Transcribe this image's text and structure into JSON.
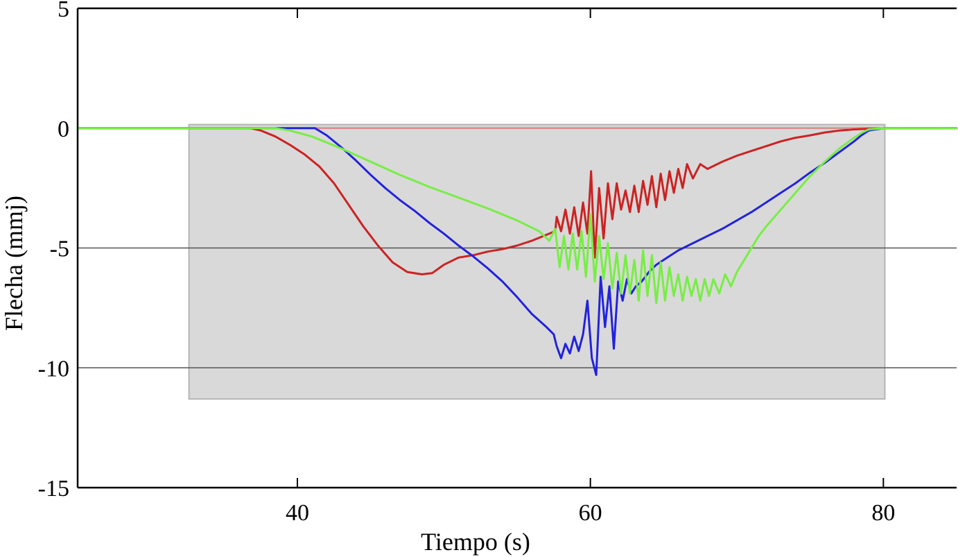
{
  "chart_data": {
    "type": "line",
    "title": "",
    "xlabel": "Tiempo (s)",
    "ylabel": "Flecha (mmj)",
    "xlim": [
      25,
      85
    ],
    "ylim": [
      -15,
      5
    ],
    "xticks": [
      40,
      60,
      80
    ],
    "xtick_labels": [
      "40",
      "60",
      "80"
    ],
    "yticks": [
      5,
      0,
      -5,
      -10,
      -15
    ],
    "ytick_labels": [
      "5",
      "0",
      "-5",
      "-10",
      "-15"
    ],
    "grid_y": [
      0,
      -5,
      -10
    ],
    "grid": "horizontal lines at 0, -5 and -10",
    "legend": "none",
    "shaded_region": {
      "x": [
        32.6,
        80.1
      ],
      "y": [
        -11.3,
        0.15
      ],
      "color": "#d9d9d9"
    },
    "series": [
      {
        "color": "#ff9999",
        "style": "background",
        "points": [
          [
            25,
            0
          ],
          [
            85,
            0
          ]
        ]
      },
      {
        "color": "#cc2222",
        "points": [
          [
            25,
            0
          ],
          [
            36.8,
            0
          ],
          [
            37.5,
            -0.1
          ],
          [
            38.5,
            -0.35
          ],
          [
            39.5,
            -0.7
          ],
          [
            40.5,
            -1.1
          ],
          [
            41.5,
            -1.6
          ],
          [
            42.5,
            -2.3
          ],
          [
            43.5,
            -3.2
          ],
          [
            44.5,
            -4.1
          ],
          [
            45.5,
            -4.9
          ],
          [
            46.5,
            -5.6
          ],
          [
            47.5,
            -6.0
          ],
          [
            48.5,
            -6.1
          ],
          [
            49.2,
            -6.05
          ],
          [
            50,
            -5.7
          ],
          [
            51,
            -5.4
          ],
          [
            52,
            -5.3
          ],
          [
            53,
            -5.15
          ],
          [
            54,
            -5.05
          ],
          [
            55,
            -4.9
          ],
          [
            56,
            -4.7
          ],
          [
            57,
            -4.45
          ],
          [
            57.6,
            -4.3
          ],
          [
            57.7,
            -3.7
          ],
          [
            58.0,
            -4.3
          ],
          [
            58.3,
            -3.4
          ],
          [
            58.6,
            -4.4
          ],
          [
            58.9,
            -3.3
          ],
          [
            59.2,
            -4.5
          ],
          [
            59.5,
            -3.1
          ],
          [
            59.8,
            -4.4
          ],
          [
            60.05,
            -1.8
          ],
          [
            60.3,
            -5.4
          ],
          [
            60.6,
            -2.5
          ],
          [
            60.9,
            -4.6
          ],
          [
            61.2,
            -2.3
          ],
          [
            61.5,
            -3.8
          ],
          [
            61.8,
            -2.3
          ],
          [
            62.1,
            -3.4
          ],
          [
            62.4,
            -2.6
          ],
          [
            62.7,
            -3.5
          ],
          [
            63.0,
            -2.4
          ],
          [
            63.3,
            -3.5
          ],
          [
            63.6,
            -2.2
          ],
          [
            63.9,
            -3.2
          ],
          [
            64.2,
            -2.0
          ],
          [
            64.5,
            -3.3
          ],
          [
            64.8,
            -1.9
          ],
          [
            65.1,
            -3.0
          ],
          [
            65.4,
            -1.8
          ],
          [
            65.7,
            -2.7
          ],
          [
            66.0,
            -1.7
          ],
          [
            66.3,
            -2.5
          ],
          [
            66.6,
            -1.5
          ],
          [
            67,
            -2.1
          ],
          [
            67.5,
            -1.5
          ],
          [
            68,
            -1.7
          ],
          [
            69,
            -1.4
          ],
          [
            70,
            -1.15
          ],
          [
            71,
            -0.95
          ],
          [
            72,
            -0.75
          ],
          [
            73,
            -0.55
          ],
          [
            74,
            -0.4
          ],
          [
            75,
            -0.3
          ],
          [
            76,
            -0.18
          ],
          [
            77,
            -0.1
          ],
          [
            78,
            -0.05
          ],
          [
            80,
            0
          ],
          [
            85,
            0
          ]
        ]
      },
      {
        "color": "#2222dd",
        "points": [
          [
            25,
            0
          ],
          [
            41.2,
            0
          ],
          [
            42,
            -0.3
          ],
          [
            43,
            -0.8
          ],
          [
            44,
            -1.35
          ],
          [
            45,
            -1.95
          ],
          [
            46,
            -2.5
          ],
          [
            47,
            -3.0
          ],
          [
            48,
            -3.45
          ],
          [
            49,
            -3.95
          ],
          [
            50,
            -4.4
          ],
          [
            51,
            -4.9
          ],
          [
            52,
            -5.35
          ],
          [
            53,
            -5.85
          ],
          [
            54,
            -6.4
          ],
          [
            55,
            -7.05
          ],
          [
            56,
            -7.75
          ],
          [
            57,
            -8.3
          ],
          [
            57.5,
            -8.6
          ],
          [
            57.7,
            -9.1
          ],
          [
            58.0,
            -9.6
          ],
          [
            58.3,
            -9.0
          ],
          [
            58.6,
            -9.4
          ],
          [
            58.9,
            -8.7
          ],
          [
            59.2,
            -9.3
          ],
          [
            59.5,
            -8.6
          ],
          [
            59.8,
            -7.2
          ],
          [
            60.1,
            -9.6
          ],
          [
            60.4,
            -10.3
          ],
          [
            60.7,
            -6.2
          ],
          [
            61.0,
            -8.3
          ],
          [
            61.3,
            -6.6
          ],
          [
            61.6,
            -9.2
          ],
          [
            61.9,
            -6.4
          ],
          [
            62.2,
            -7.2
          ],
          [
            62.5,
            -6.3
          ],
          [
            62.8,
            -6.9
          ],
          [
            63.1,
            -6.6
          ],
          [
            63.5,
            -6.4
          ],
          [
            64.0,
            -6.0
          ],
          [
            64.5,
            -5.7
          ],
          [
            65,
            -5.5
          ],
          [
            66,
            -5.1
          ],
          [
            67,
            -4.8
          ],
          [
            68,
            -4.5
          ],
          [
            69,
            -4.2
          ],
          [
            70,
            -3.85
          ],
          [
            71,
            -3.5
          ],
          [
            72,
            -3.1
          ],
          [
            73,
            -2.7
          ],
          [
            74,
            -2.3
          ],
          [
            75,
            -1.85
          ],
          [
            76,
            -1.45
          ],
          [
            77,
            -1.0
          ],
          [
            78,
            -0.55
          ],
          [
            78.5,
            -0.3
          ],
          [
            79,
            -0.1
          ],
          [
            80,
            0
          ],
          [
            85,
            0
          ]
        ]
      },
      {
        "color": "#77ee44",
        "points": [
          [
            25,
            0
          ],
          [
            38.5,
            0
          ],
          [
            39.5,
            -0.1
          ],
          [
            41,
            -0.35
          ],
          [
            43,
            -0.85
          ],
          [
            45,
            -1.4
          ],
          [
            47,
            -1.95
          ],
          [
            49,
            -2.45
          ],
          [
            51,
            -2.9
          ],
          [
            53,
            -3.35
          ],
          [
            55,
            -3.85
          ],
          [
            56.5,
            -4.3
          ],
          [
            57.2,
            -4.7
          ],
          [
            57.6,
            -4.2
          ],
          [
            57.9,
            -5.8
          ],
          [
            58.2,
            -4.5
          ],
          [
            58.5,
            -5.9
          ],
          [
            58.8,
            -4.4
          ],
          [
            59.1,
            -5.9
          ],
          [
            59.4,
            -4.3
          ],
          [
            59.7,
            -6.2
          ],
          [
            60.0,
            -3.6
          ],
          [
            60.3,
            -6.4
          ],
          [
            60.6,
            -4.5
          ],
          [
            60.9,
            -6.3
          ],
          [
            61.2,
            -4.8
          ],
          [
            61.5,
            -6.7
          ],
          [
            61.8,
            -5.2
          ],
          [
            62.1,
            -6.9
          ],
          [
            62.4,
            -5.3
          ],
          [
            62.7,
            -6.9
          ],
          [
            63.0,
            -5.5
          ],
          [
            63.3,
            -7.2
          ],
          [
            63.6,
            -5.1
          ],
          [
            63.9,
            -7.0
          ],
          [
            64.2,
            -5.3
          ],
          [
            64.5,
            -7.3
          ],
          [
            64.8,
            -5.6
          ],
          [
            65.1,
            -7.2
          ],
          [
            65.4,
            -5.8
          ],
          [
            65.7,
            -7.0
          ],
          [
            66.0,
            -6.1
          ],
          [
            66.3,
            -7.2
          ],
          [
            66.6,
            -6.2
          ],
          [
            66.9,
            -7.0
          ],
          [
            67.2,
            -6.3
          ],
          [
            67.5,
            -7.2
          ],
          [
            67.8,
            -6.3
          ],
          [
            68.1,
            -7.0
          ],
          [
            68.4,
            -6.3
          ],
          [
            68.8,
            -6.9
          ],
          [
            69.2,
            -6.1
          ],
          [
            69.6,
            -6.6
          ],
          [
            70,
            -6.0
          ],
          [
            70.5,
            -5.5
          ],
          [
            71,
            -5.0
          ],
          [
            71.5,
            -4.5
          ],
          [
            72,
            -4.1
          ],
          [
            73,
            -3.4
          ],
          [
            74,
            -2.7
          ],
          [
            75,
            -2.0
          ],
          [
            76,
            -1.4
          ],
          [
            77,
            -0.85
          ],
          [
            78,
            -0.4
          ],
          [
            78.5,
            -0.2
          ],
          [
            79,
            -0.05
          ],
          [
            80,
            0
          ],
          [
            85,
            0
          ]
        ]
      }
    ]
  }
}
